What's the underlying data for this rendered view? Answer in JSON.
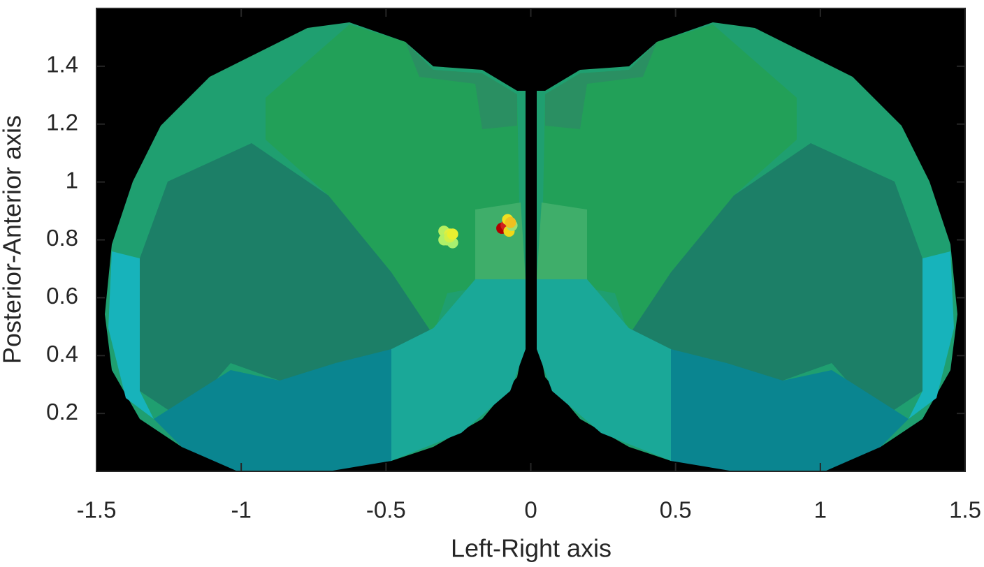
{
  "chart_data": {
    "type": "scatter",
    "xlabel": "Left-Right axis",
    "ylabel": "Posterior-Anterior axis",
    "xlim": [
      -1.5,
      1.5
    ],
    "ylim": [
      0,
      1.6
    ],
    "xticks": [
      -1.5,
      -1,
      -0.5,
      0,
      0.5,
      1,
      1.5
    ],
    "yticks": [
      0.2,
      0.4,
      0.6,
      0.8,
      1,
      1.2,
      1.4
    ],
    "x": [
      -0.3,
      -0.29,
      -0.28,
      -0.27,
      -0.3,
      -0.28,
      -0.27,
      -0.1,
      -0.085,
      -0.08,
      -0.075,
      -0.065,
      -0.07
    ],
    "series": [
      {
        "values": [
          0.83,
          0.8,
          0.82,
          0.79,
          0.8,
          0.81,
          0.82,
          0.84,
          0.85,
          0.87,
          0.83,
          0.85,
          0.86
        ],
        "colors": [
          "#b8f060",
          "#c8f050",
          "#e0f040",
          "#a8f070",
          "#b0f068",
          "#d0f048",
          "#e8f030",
          "#b00000",
          "#d02020",
          "#f0e020",
          "#f0d818",
          "#a0e070",
          "#f0c020"
        ]
      }
    ]
  }
}
